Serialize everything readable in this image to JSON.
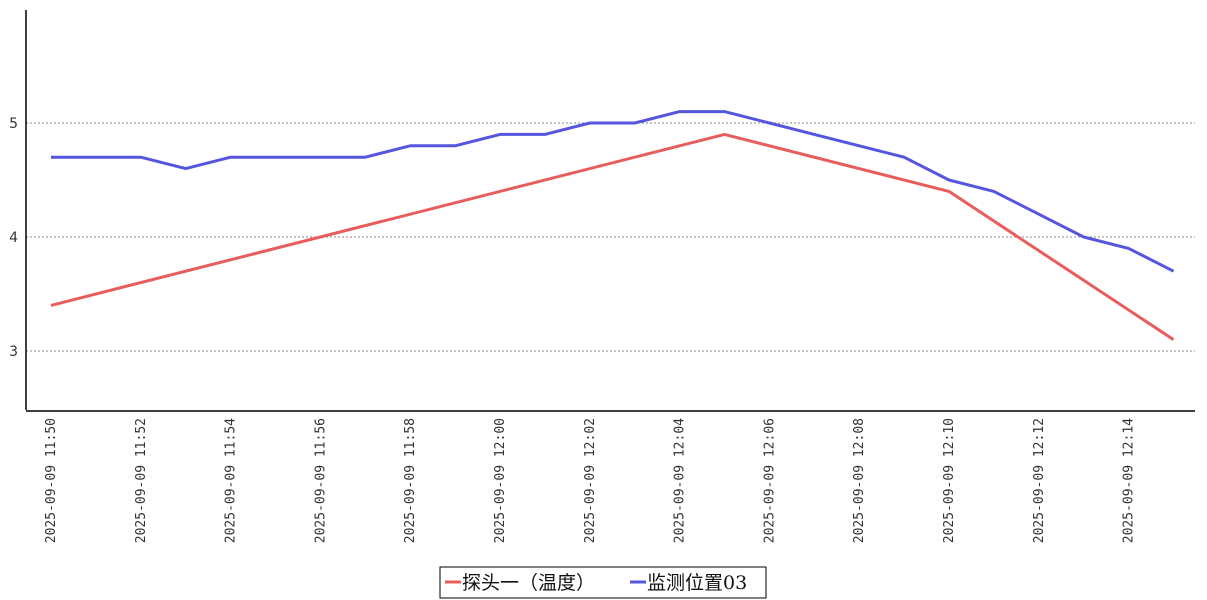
{
  "chart_data": {
    "type": "line",
    "x": [
      "2025-09-09 11:50",
      "2025-09-09 11:51",
      "2025-09-09 11:52",
      "2025-09-09 11:53",
      "2025-09-09 11:54",
      "2025-09-09 11:55",
      "2025-09-09 11:56",
      "2025-09-09 11:57",
      "2025-09-09 11:58",
      "2025-09-09 11:59",
      "2025-09-09 12:00",
      "2025-09-09 12:01",
      "2025-09-09 12:02",
      "2025-09-09 12:03",
      "2025-09-09 12:04",
      "2025-09-09 12:05",
      "2025-09-09 12:06",
      "2025-09-09 12:07",
      "2025-09-09 12:08",
      "2025-09-09 12:09",
      "2025-09-09 12:10",
      "2025-09-09 12:11",
      "2025-09-09 12:12",
      "2025-09-09 12:13",
      "2025-09-09 12:14",
      "2025-09-09 12:15"
    ],
    "x_tick_labels": [
      "2025-09-09 11:50",
      "2025-09-09 11:52",
      "2025-09-09 11:54",
      "2025-09-09 11:56",
      "2025-09-09 11:58",
      "2025-09-09 12:00",
      "2025-09-09 12:02",
      "2025-09-09 12:04",
      "2025-09-09 12:06",
      "2025-09-09 12:08",
      "2025-09-09 12:10",
      "2025-09-09 12:12",
      "2025-09-09 12:14"
    ],
    "y_ticks": [
      3,
      4,
      5
    ],
    "ylim": [
      2.5,
      6.0
    ],
    "series": [
      {
        "name": "探头一（温度）",
        "color": "#e85c5c",
        "x": [
          "2025-09-09 11:50",
          "2025-09-09 12:05",
          "2025-09-09 12:10",
          "2025-09-09 12:15"
        ],
        "values": [
          3.4,
          4.9,
          4.4,
          3.1
        ]
      },
      {
        "name": "监测位置03",
        "color": "#5555e0",
        "x": [
          "2025-09-09 11:50",
          "2025-09-09 11:51",
          "2025-09-09 11:52",
          "2025-09-09 11:53",
          "2025-09-09 11:54",
          "2025-09-09 11:55",
          "2025-09-09 11:56",
          "2025-09-09 11:57",
          "2025-09-09 11:58",
          "2025-09-09 11:59",
          "2025-09-09 12:00",
          "2025-09-09 12:01",
          "2025-09-09 12:02",
          "2025-09-09 12:03",
          "2025-09-09 12:04",
          "2025-09-09 12:05",
          "2025-09-09 12:06",
          "2025-09-09 12:07",
          "2025-09-09 12:08",
          "2025-09-09 12:09",
          "2025-09-09 12:10",
          "2025-09-09 12:11",
          "2025-09-09 12:12",
          "2025-09-09 12:13",
          "2025-09-09 12:14",
          "2025-09-09 12:15"
        ],
        "values": [
          4.7,
          4.7,
          4.7,
          4.6,
          4.7,
          4.7,
          4.7,
          4.7,
          4.8,
          4.8,
          4.9,
          4.9,
          5.0,
          5.0,
          5.1,
          5.1,
          5.0,
          4.9,
          4.8,
          4.7,
          4.5,
          4.4,
          4.2,
          4.0,
          3.9,
          3.7
        ]
      }
    ],
    "grid": "horizontal dotted",
    "legend_position": "bottom-center",
    "title": "",
    "xlabel": "",
    "ylabel": ""
  }
}
